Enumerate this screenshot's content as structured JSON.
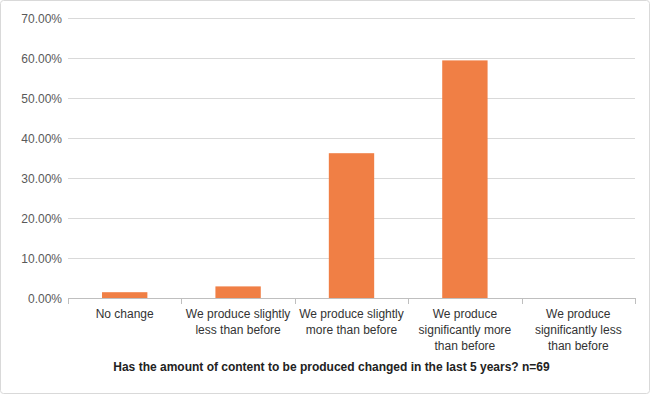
{
  "chart_data": {
    "type": "bar",
    "title": "Has the amount of content to be produced changed in the last 5 years? n=69",
    "categories": [
      "No change",
      "We produce slightly less than before",
      "We produce slightly more than before",
      "We produce significantly more than before",
      "We produce significantly less than before"
    ],
    "values": [
      1.45,
      2.9,
      36.2,
      59.4,
      0
    ],
    "color": "#f07f45",
    "ylim": [
      0,
      70
    ],
    "yticks": [
      {
        "value": 0,
        "label": "0.00%"
      },
      {
        "value": 10,
        "label": "10.00%"
      },
      {
        "value": 20,
        "label": "20.00%"
      },
      {
        "value": 30,
        "label": "30.00%"
      },
      {
        "value": 40,
        "label": "40.00%"
      },
      {
        "value": 50,
        "label": "50.00%"
      },
      {
        "value": 60,
        "label": "60.00%"
      },
      {
        "value": 70,
        "label": "70.00%"
      }
    ],
    "grid": true
  }
}
